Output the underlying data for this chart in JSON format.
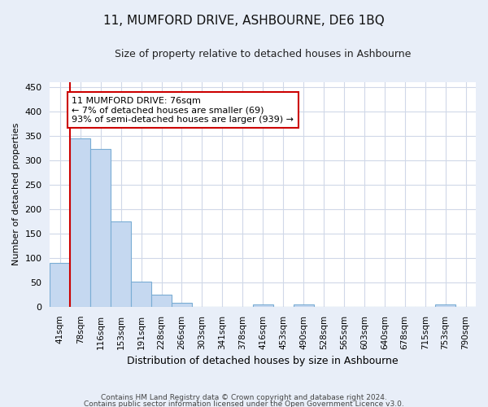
{
  "title": "11, MUMFORD DRIVE, ASHBOURNE, DE6 1BQ",
  "subtitle": "Size of property relative to detached houses in Ashbourne",
  "xlabel": "Distribution of detached houses by size in Ashbourne",
  "ylabel": "Number of detached properties",
  "bar_labels": [
    "41sqm",
    "78sqm",
    "116sqm",
    "153sqm",
    "191sqm",
    "228sqm",
    "266sqm",
    "303sqm",
    "341sqm",
    "378sqm",
    "416sqm",
    "453sqm",
    "490sqm",
    "528sqm",
    "565sqm",
    "603sqm",
    "640sqm",
    "678sqm",
    "715sqm",
    "753sqm",
    "790sqm"
  ],
  "bar_values": [
    90,
    345,
    322,
    174,
    52,
    25,
    8,
    0,
    0,
    0,
    4,
    0,
    5,
    0,
    0,
    0,
    0,
    0,
    0,
    4,
    0
  ],
  "bar_color": "#c5d8f0",
  "bar_edge_color": "#7aadd4",
  "annotation_box_color": "#ffffff",
  "annotation_border_color": "#cc0000",
  "annotation_line_color": "#cc0000",
  "annotation_text_line1": "11 MUMFORD DRIVE: 76sqm",
  "annotation_text_line2": "← 7% of detached houses are smaller (69)",
  "annotation_text_line3": "93% of semi-detached houses are larger (939) →",
  "ylim": [
    0,
    460
  ],
  "yticks": [
    0,
    50,
    100,
    150,
    200,
    250,
    300,
    350,
    400,
    450
  ],
  "footer_line1": "Contains HM Land Registry data © Crown copyright and database right 2024.",
  "footer_line2": "Contains public sector information licensed under the Open Government Licence v3.0.",
  "figure_background_color": "#e8eef8",
  "plot_background_color": "#ffffff",
  "grid_color": "#d0d8e8",
  "title_fontsize": 11,
  "subtitle_fontsize": 9,
  "ylabel_fontsize": 8,
  "xlabel_fontsize": 9
}
